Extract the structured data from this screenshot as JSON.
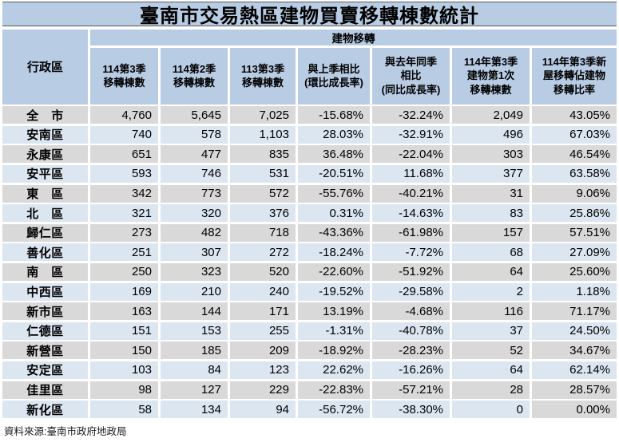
{
  "title": "臺南市交易熱區建物買賣移轉棟數統計",
  "source_note": "資料來源:臺南市政府地政局",
  "colors": {
    "header_background": "#b8cce4",
    "row_gray": "#d9d9d9",
    "row_blue": "#dce6f1",
    "grid_gap": "#ffffff",
    "title_border": "#595959",
    "text": "#000000"
  },
  "table": {
    "region_header": "行政區",
    "group_header": "建物移轉",
    "columns": [
      "114第3季\n移轉棟數",
      "114第2季\n移轉棟數",
      "113第3季\n移轉棟數",
      "與上季相比\n(環比成長率)",
      "與去年同季\n相比\n(同比成長率)",
      "114年第3季\n建物第1次\n移轉棟數",
      "114年第3季新\n屋移轉佔建物\n移轉比率"
    ],
    "rows": [
      {
        "region": "全　市",
        "tone": "gray",
        "values": [
          "4,760",
          "5,645",
          "7,025",
          "-15.68%",
          "-32.24%",
          "2,049",
          "43.05%"
        ]
      },
      {
        "region": "安南區",
        "tone": "blue",
        "values": [
          "740",
          "578",
          "1,103",
          "28.03%",
          "-32.91%",
          "496",
          "67.03%"
        ]
      },
      {
        "region": "永康區",
        "tone": "gray",
        "values": [
          "651",
          "477",
          "835",
          "36.48%",
          "-22.04%",
          "303",
          "46.54%"
        ]
      },
      {
        "region": "安平區",
        "tone": "blue",
        "values": [
          "593",
          "746",
          "531",
          "-20.51%",
          "11.68%",
          "377",
          "63.58%"
        ]
      },
      {
        "region": "東　區",
        "tone": "gray",
        "values": [
          "342",
          "773",
          "572",
          "-55.76%",
          "-40.21%",
          "31",
          "9.06%"
        ]
      },
      {
        "region": "北　區",
        "tone": "blue",
        "values": [
          "321",
          "320",
          "376",
          "0.31%",
          "-14.63%",
          "83",
          "25.86%"
        ]
      },
      {
        "region": "歸仁區",
        "tone": "gray",
        "values": [
          "273",
          "482",
          "718",
          "-43.36%",
          "-61.98%",
          "157",
          "57.51%"
        ]
      },
      {
        "region": "善化區",
        "tone": "blue",
        "values": [
          "251",
          "307",
          "272",
          "-18.24%",
          "-7.72%",
          "68",
          "27.09%"
        ]
      },
      {
        "region": "南　區",
        "tone": "gray",
        "values": [
          "250",
          "323",
          "520",
          "-22.60%",
          "-51.92%",
          "64",
          "25.60%"
        ]
      },
      {
        "region": "中西區",
        "tone": "blue",
        "values": [
          "169",
          "210",
          "240",
          "-19.52%",
          "-29.58%",
          "2",
          "1.18%"
        ]
      },
      {
        "region": "新市區",
        "tone": "gray",
        "values": [
          "163",
          "144",
          "171",
          "13.19%",
          "-4.68%",
          "116",
          "71.17%"
        ]
      },
      {
        "region": "仁德區",
        "tone": "blue",
        "values": [
          "151",
          "153",
          "255",
          "-1.31%",
          "-40.78%",
          "37",
          "24.50%"
        ]
      },
      {
        "region": "新營區",
        "tone": "gray",
        "values": [
          "150",
          "185",
          "209",
          "-18.92%",
          "-28.23%",
          "52",
          "34.67%"
        ]
      },
      {
        "region": "安定區",
        "tone": "blue",
        "values": [
          "103",
          "84",
          "123",
          "22.62%",
          "-16.26%",
          "64",
          "62.14%"
        ]
      },
      {
        "region": "佳里區",
        "tone": "gray",
        "values": [
          "98",
          "127",
          "229",
          "-22.83%",
          "-57.21%",
          "28",
          "28.57%"
        ]
      },
      {
        "region": "新化區",
        "tone": "blue",
        "last_cell_tone": "gray",
        "values": [
          "58",
          "134",
          "94",
          "-56.72%",
          "-38.30%",
          "0",
          "0.00%"
        ]
      }
    ]
  }
}
